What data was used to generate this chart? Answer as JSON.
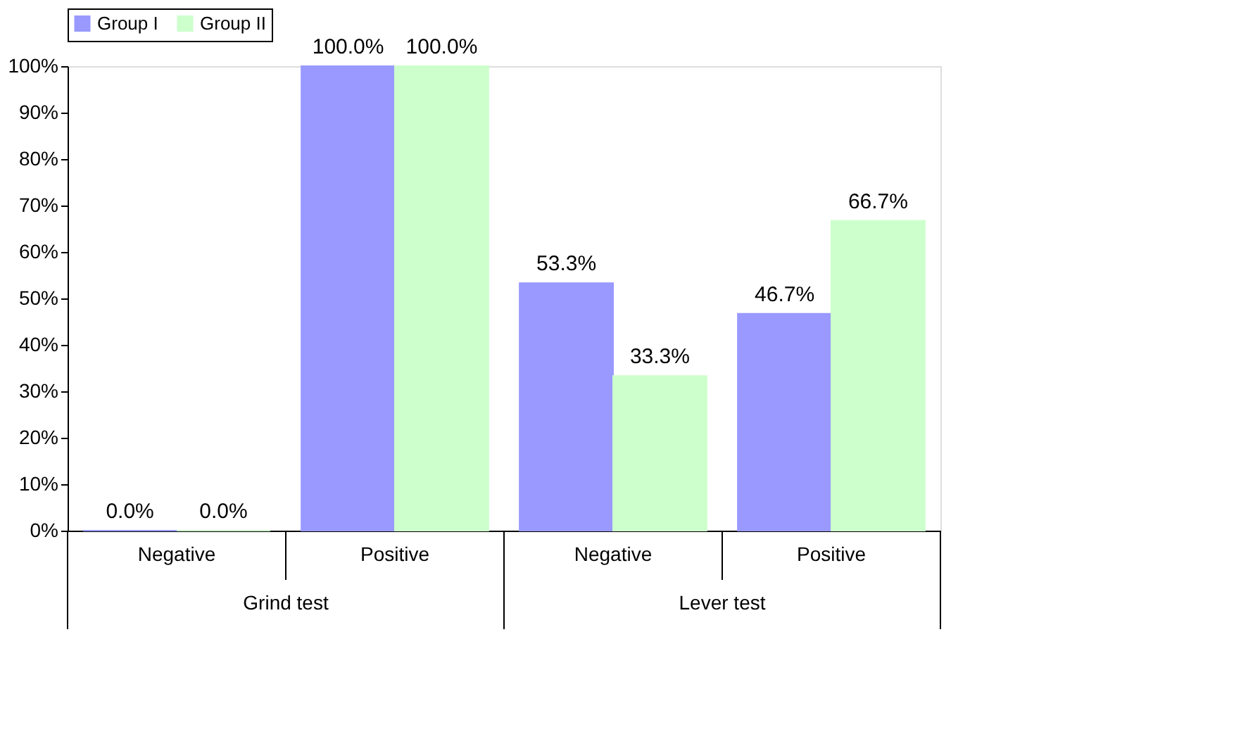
{
  "chart_data": {
    "type": "bar",
    "categories": [
      "Negative",
      "Positive",
      "Negative",
      "Positive"
    ],
    "series": [
      {
        "name": "Group I",
        "color": "#9999ff",
        "values": [
          0.0,
          100.0,
          53.3,
          46.7
        ],
        "value_labels": [
          "0.0%",
          "100.0%",
          "53.3%",
          "46.7%"
        ]
      },
      {
        "name": "Group II",
        "color": "#ccffcc",
        "values": [
          0.0,
          100.0,
          33.3,
          66.7
        ],
        "value_labels": [
          "0.0%",
          "100.0%",
          "33.3%",
          "66.7%"
        ]
      }
    ],
    "ylim": [
      0,
      100
    ],
    "yticks": [
      {
        "value": 0,
        "label": "0%"
      },
      {
        "value": 10,
        "label": "10%"
      },
      {
        "value": 20,
        "label": "20%"
      },
      {
        "value": 30,
        "label": "30%"
      },
      {
        "value": 40,
        "label": "40%"
      },
      {
        "value": 50,
        "label": "50%"
      },
      {
        "value": 60,
        "label": "60%"
      },
      {
        "value": 70,
        "label": "70%"
      },
      {
        "value": 80,
        "label": "80%"
      },
      {
        "value": 90,
        "label": "90%"
      },
      {
        "value": 100,
        "label": "100%"
      }
    ],
    "annotations": [
      "Grind  test",
      "Lever test"
    ],
    "legend": "top",
    "grid": false
  }
}
